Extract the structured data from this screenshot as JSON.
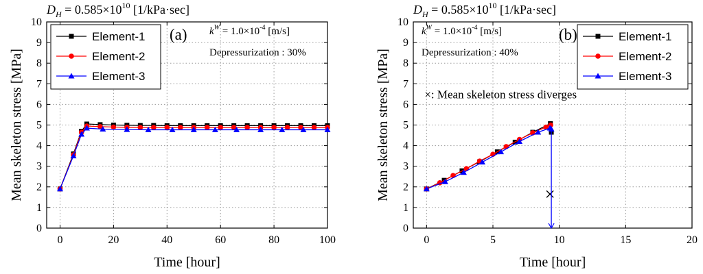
{
  "chart_data": [
    {
      "type": "line",
      "header": "D_H = 0.585×10^10 [1/kPa·sec]",
      "header_parts": {
        "sym": "D",
        "sub": "H",
        "pre": " = 0.585×10",
        "sup": "10",
        "post": " [1/kPa·sec]"
      },
      "panel_label": "(a)",
      "xlabel": "Time [hour]",
      "ylabel": "Mean skeleton stress [MPa]",
      "xlim": [
        -5,
        100
      ],
      "ylim": [
        0,
        10
      ],
      "xticks": [
        0,
        20,
        40,
        60,
        80,
        100
      ],
      "yticks": [
        0,
        1,
        2,
        3,
        4,
        5,
        6,
        7,
        8,
        9,
        10
      ],
      "grid": true,
      "legend": "top-left",
      "annotations": {
        "kw": {
          "sym": "k",
          "sup": "W",
          "pre": " = 1.0×10",
          "exp": "-4",
          "post": " [m/s]"
        },
        "depress": "Depressurization : 30%"
      },
      "series": [
        {
          "name": "Element-1",
          "color": "#000000",
          "marker": "square",
          "x": [
            0,
            5,
            8,
            10,
            15,
            20,
            25,
            30,
            35,
            40,
            45,
            50,
            55,
            60,
            65,
            70,
            75,
            80,
            85,
            90,
            95,
            100
          ],
          "y": [
            1.9,
            3.6,
            4.7,
            5.05,
            5.02,
            5.0,
            4.99,
            4.98,
            4.98,
            4.97,
            4.97,
            4.97,
            4.97,
            4.97,
            4.97,
            4.97,
            4.97,
            4.97,
            4.97,
            4.97,
            4.97,
            4.97
          ]
        },
        {
          "name": "Element-2",
          "color": "#ff0000",
          "marker": "circle",
          "x": [
            0,
            5,
            8,
            10,
            15,
            20,
            25,
            30,
            35,
            40,
            45,
            50,
            55,
            60,
            65,
            70,
            75,
            80,
            85,
            90,
            95,
            100
          ],
          "y": [
            1.9,
            3.55,
            4.65,
            4.95,
            4.92,
            4.9,
            4.89,
            4.88,
            4.88,
            4.88,
            4.88,
            4.88,
            4.88,
            4.88,
            4.88,
            4.88,
            4.88,
            4.88,
            4.88,
            4.88,
            4.88,
            4.88
          ]
        },
        {
          "name": "Element-3",
          "color": "#0000ff",
          "marker": "triangle",
          "x": [
            0,
            5,
            8,
            10,
            16,
            25,
            33,
            42,
            50,
            58,
            66,
            75,
            83,
            91,
            100
          ],
          "y": [
            1.9,
            3.5,
            4.55,
            4.85,
            4.8,
            4.78,
            4.77,
            4.77,
            4.77,
            4.77,
            4.77,
            4.77,
            4.77,
            4.77,
            4.77
          ]
        }
      ]
    },
    {
      "type": "line",
      "header": "D_H = 0.585×10^10 [1/kPa·sec]",
      "header_parts": {
        "sym": "D",
        "sub": "H",
        "pre": " = 0.585×10",
        "sup": "10",
        "post": " [1/kPa·sec]"
      },
      "panel_label": "(b)",
      "xlabel": "Time [hour]",
      "ylabel": "Mean skeleton stress [MPa]",
      "xlim": [
        -1,
        20
      ],
      "ylim": [
        0,
        10
      ],
      "xticks": [
        0,
        5,
        10,
        15,
        20
      ],
      "yticks": [
        0,
        1,
        2,
        3,
        4,
        5,
        6,
        7,
        8,
        9,
        10
      ],
      "grid": true,
      "legend": "top-right",
      "annotations": {
        "kw": {
          "sym": "k",
          "sup": "W",
          "pre": " = 1.0×10",
          "exp": "-4",
          "post": " [m/s]"
        },
        "depress": "Depressurization : 40%",
        "diverge_text": "×: Mean skeleton stress diverges",
        "diverge_marker": {
          "x": 9.3,
          "y": 1.65
        }
      },
      "series": [
        {
          "name": "Element-1",
          "color": "#000000",
          "marker": "square",
          "x": [
            0,
            1.33,
            2.67,
            4.0,
            5.33,
            6.67,
            8.0,
            9.33,
            9.4
          ],
          "y": [
            1.9,
            2.32,
            2.78,
            3.22,
            3.7,
            4.17,
            4.65,
            5.07,
            4.65
          ]
        },
        {
          "name": "Element-2",
          "color": "#ff0000",
          "marker": "circle",
          "x": [
            0,
            1.0,
            2.0,
            3.0,
            4.0,
            5.0,
            6.0,
            7.0,
            8.0,
            9.0,
            9.35
          ],
          "y": [
            1.9,
            2.2,
            2.55,
            2.88,
            3.25,
            3.58,
            3.95,
            4.3,
            4.62,
            4.9,
            5.0
          ]
        },
        {
          "name": "Element-3",
          "color": "#0000ff",
          "marker": "triangle",
          "x": [
            0,
            1.4,
            2.8,
            4.2,
            5.6,
            7.0,
            8.4,
            9.3,
            9.4,
            9.4
          ],
          "y": [
            1.9,
            2.25,
            2.7,
            3.2,
            3.7,
            4.2,
            4.65,
            4.85,
            4.8,
            0
          ]
        }
      ]
    }
  ]
}
